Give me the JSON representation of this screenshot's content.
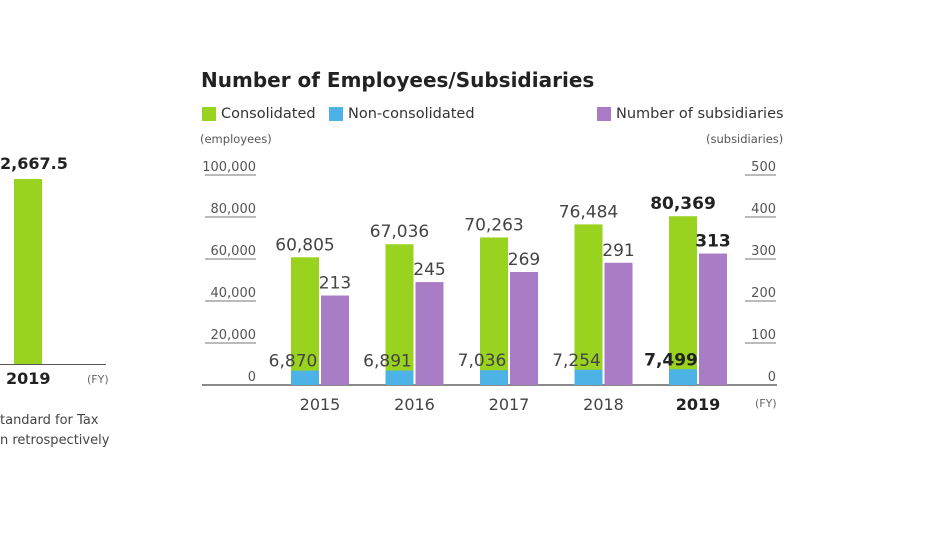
{
  "left_panel": {
    "value_label": "2,667.5",
    "value": 2667.5,
    "year_label": "2019",
    "fy_label": "(FY)",
    "note_lines": [
      "tandard for Tax",
      "n retrospectively"
    ],
    "bar_color": "#99d31f"
  },
  "chart_data": {
    "type": "bar",
    "title": "Number of Employees/Subsidiaries",
    "categories": [
      "2015",
      "2016",
      "2017",
      "2018",
      "2019"
    ],
    "highlight_category": "2019",
    "x_unit_label": "(FY)",
    "legend": {
      "left": [
        "Consolidated",
        "Non-consolidated"
      ],
      "right": [
        "Number of subsidiaries"
      ]
    },
    "left_axis": {
      "unit_label": "(employees)",
      "ylim": [
        0,
        100000
      ],
      "ticks": [
        "0",
        "20,000",
        "40,000",
        "60,000",
        "80,000",
        "100,000"
      ]
    },
    "right_axis": {
      "unit_label": "(subsidiaries)",
      "ylim": [
        0,
        500
      ],
      "ticks": [
        "0",
        "100",
        "200",
        "300",
        "400",
        "500"
      ]
    },
    "series": [
      {
        "name": "Consolidated",
        "axis": "left",
        "color": "#99d31f",
        "values": [
          60805,
          67036,
          70263,
          76484,
          80369
        ],
        "labels": [
          "60,805",
          "67,036",
          "70,263",
          "76,484",
          "80,369"
        ]
      },
      {
        "name": "Non-consolidated",
        "axis": "left",
        "color": "#4db3e6",
        "values": [
          6870,
          6891,
          7036,
          7254,
          7499
        ],
        "labels": [
          "6,870",
          "6,891",
          "7,036",
          "7,254",
          "7,499"
        ]
      },
      {
        "name": "Number of subsidiaries",
        "axis": "right",
        "color": "#a97cc6",
        "values": [
          213,
          245,
          269,
          291,
          313
        ],
        "labels": [
          "213",
          "245",
          "269",
          "291",
          "313"
        ]
      }
    ]
  }
}
